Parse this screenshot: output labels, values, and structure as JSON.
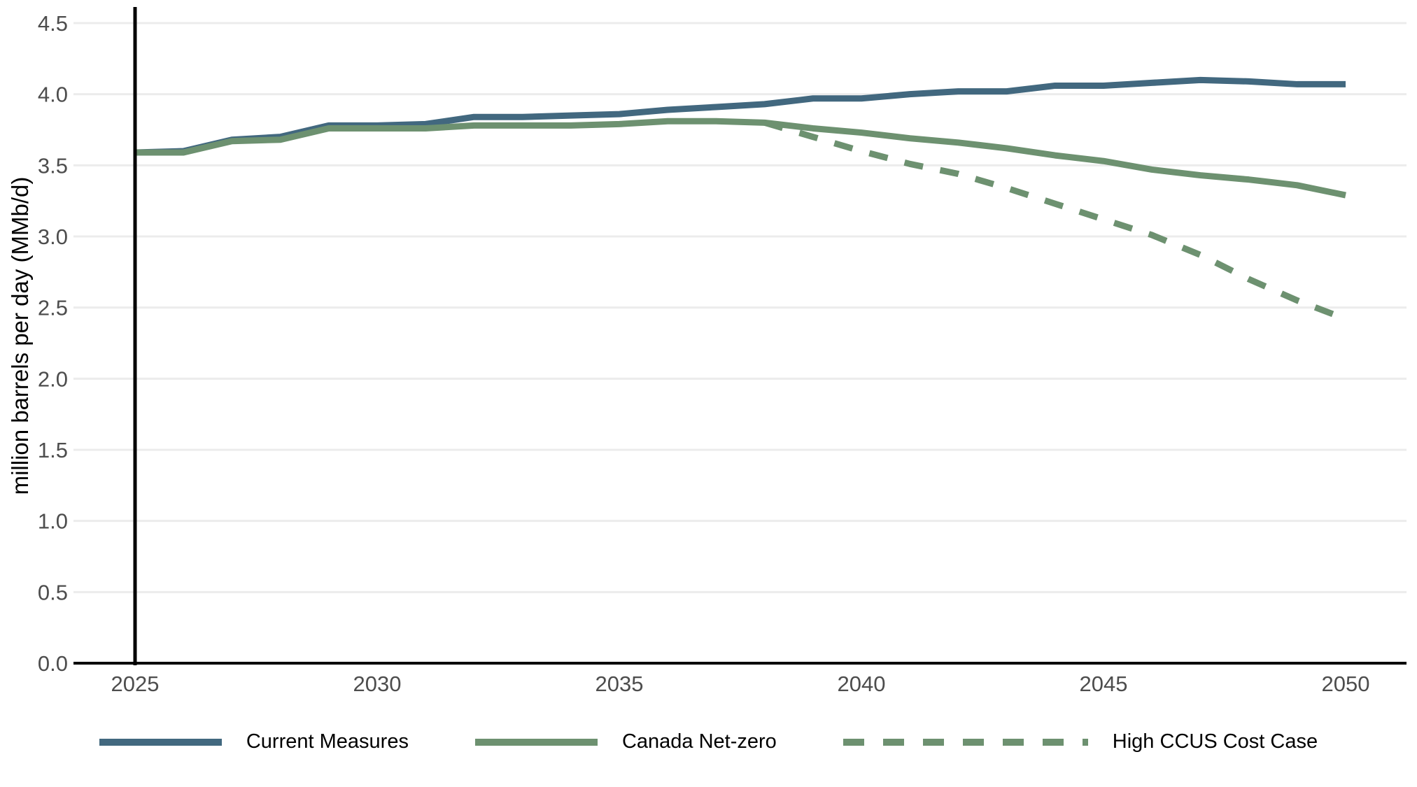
{
  "chart_data": {
    "type": "line",
    "title": "",
    "xlabel": "",
    "ylabel": "million barrels per day (MMb/d)",
    "xlim": [
      2025,
      2050
    ],
    "ylim": [
      0.0,
      4.5
    ],
    "grid": "horizontal-only",
    "legend_position": "bottom",
    "reference_line": {
      "axis": "x",
      "value": 2025,
      "color": "#000000"
    },
    "colors": {
      "current_measures": "#42687f",
      "net_zero_green": "#6d9170",
      "gridline": "#ececec",
      "axis_line": "#000000",
      "tick_label": "#4d4d4d"
    },
    "y_ticks": [
      {
        "label": "0.0",
        "value": 0.0
      },
      {
        "label": "0.5",
        "value": 0.5
      },
      {
        "label": "1.0",
        "value": 1.0
      },
      {
        "label": "1.5",
        "value": 1.5
      },
      {
        "label": "2.0",
        "value": 2.0
      },
      {
        "label": "2.5",
        "value": 2.5
      },
      {
        "label": "3.0",
        "value": 3.0
      },
      {
        "label": "3.5",
        "value": 3.5
      },
      {
        "label": "4.0",
        "value": 4.0
      },
      {
        "label": "4.5",
        "value": 4.5
      }
    ],
    "x_ticks": [
      {
        "label": "2025",
        "value": 2025
      },
      {
        "label": "2030",
        "value": 2030
      },
      {
        "label": "2035",
        "value": 2035
      },
      {
        "label": "2040",
        "value": 2040
      },
      {
        "label": "2045",
        "value": 2045
      },
      {
        "label": "2050",
        "value": 2050
      }
    ],
    "x": [
      2025,
      2026,
      2027,
      2028,
      2029,
      2030,
      2031,
      2032,
      2033,
      2034,
      2035,
      2036,
      2037,
      2038,
      2039,
      2040,
      2041,
      2042,
      2043,
      2044,
      2045,
      2046,
      2047,
      2048,
      2049,
      2050
    ],
    "series": [
      {
        "name": "Current Measures",
        "color": "#42687f",
        "style": "solid",
        "start_year": 2025,
        "values": [
          3.59,
          3.6,
          3.68,
          3.7,
          3.78,
          3.78,
          3.79,
          3.84,
          3.84,
          3.85,
          3.86,
          3.89,
          3.91,
          3.93,
          3.97,
          3.97,
          4.0,
          4.02,
          4.02,
          4.06,
          4.06,
          4.08,
          4.1,
          4.09,
          4.07,
          4.07
        ]
      },
      {
        "name": "Canada Net-zero",
        "color": "#6d9170",
        "style": "solid",
        "start_year": 2025,
        "values": [
          3.59,
          3.59,
          3.67,
          3.68,
          3.76,
          3.76,
          3.76,
          3.78,
          3.78,
          3.78,
          3.79,
          3.81,
          3.81,
          3.8,
          3.76,
          3.73,
          3.69,
          3.66,
          3.62,
          3.57,
          3.53,
          3.47,
          3.43,
          3.4,
          3.36,
          3.29
        ]
      },
      {
        "name": "High CCUS Cost Case",
        "color": "#6d9170",
        "style": "dashed",
        "start_year": 2038,
        "values": [
          3.8,
          3.7,
          3.6,
          3.51,
          3.44,
          3.34,
          3.23,
          3.12,
          3.01,
          2.87,
          2.7,
          2.55,
          2.42
        ]
      }
    ]
  }
}
